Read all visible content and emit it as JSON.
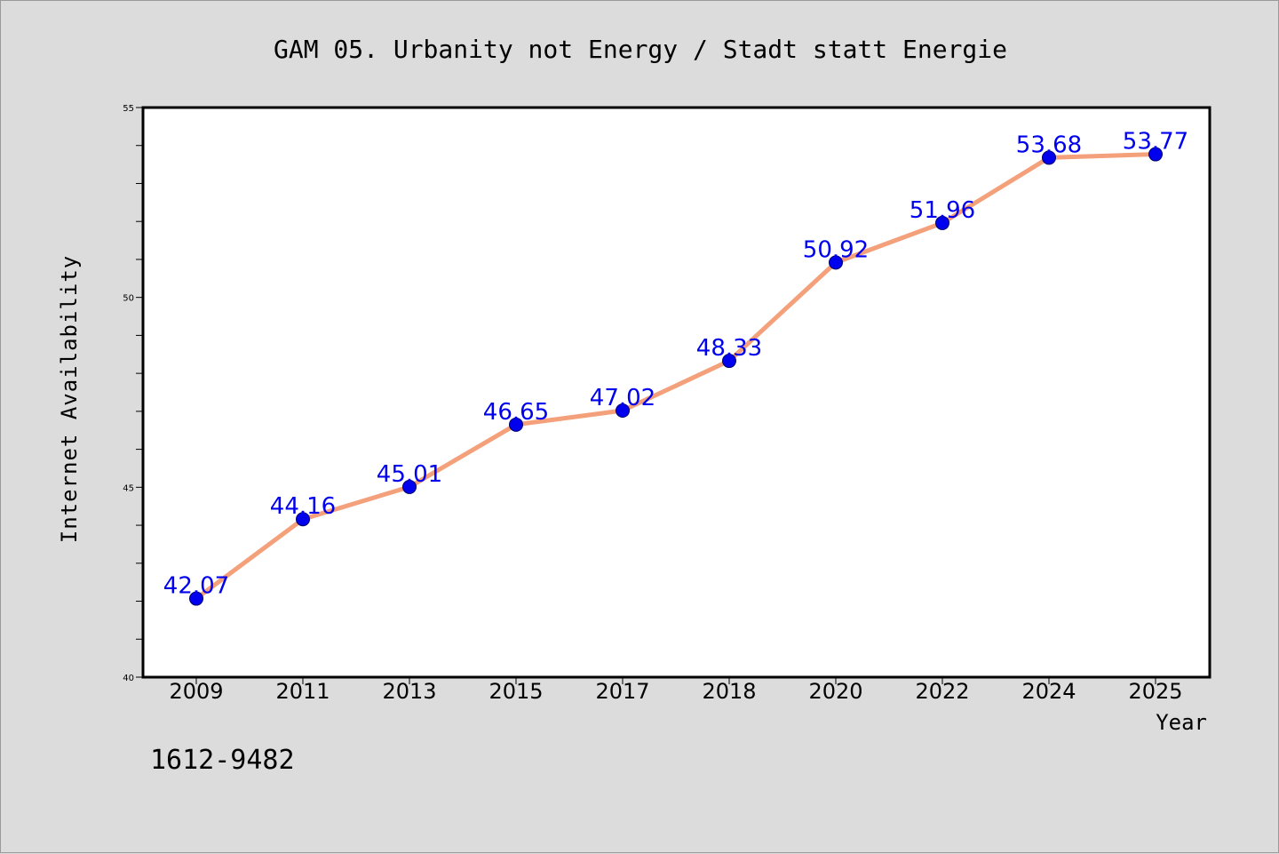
{
  "chart_data": {
    "type": "line",
    "title": "GAM 05. Urbanity not Energy / Stadt statt Energie",
    "xlabel": "Year",
    "ylabel": "Internet Availability",
    "footnote": "1612-9482",
    "categories": [
      "2009",
      "2011",
      "2013",
      "2015",
      "2017",
      "2018",
      "2020",
      "2022",
      "2024",
      "2025"
    ],
    "series": [
      {
        "values": [
          42.07,
          44.16,
          45.01,
          46.65,
          47.02,
          48.33,
          50.92,
          51.96,
          53.68,
          53.77
        ],
        "labels": [
          "42.07",
          "44.16",
          "45.01",
          "46.65",
          "47.02",
          "48.33",
          "50.92",
          "51.96",
          "53.68",
          "53.77"
        ]
      }
    ],
    "ylim": [
      40,
      55
    ],
    "yticks": [
      40,
      45,
      50,
      55
    ],
    "ytick_labels": [
      "40",
      "45",
      "50",
      "55"
    ],
    "grid": false,
    "line_color": "#f4a07a",
    "marker_color": "#0000ee",
    "label_color": "#0000ee"
  }
}
